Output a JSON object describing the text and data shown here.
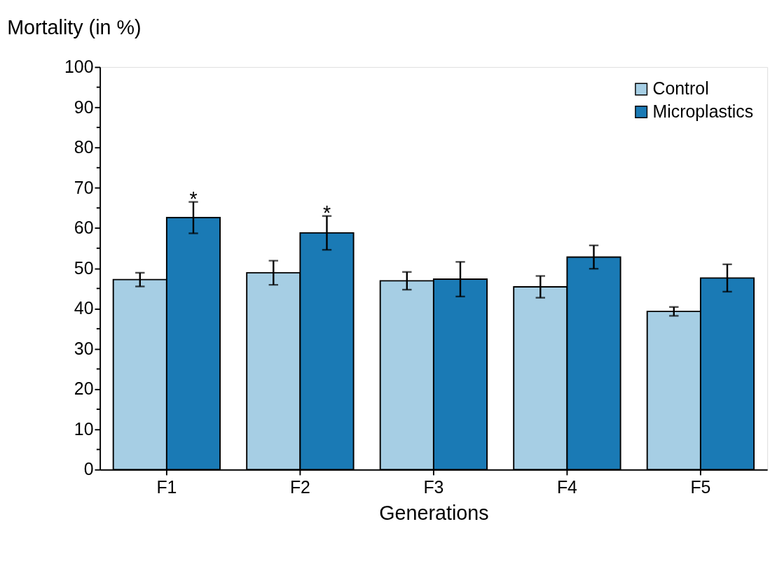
{
  "chart_data": {
    "type": "bar",
    "xlabel": "Generations",
    "ylabel": "Mortality (in %)",
    "categories": [
      "F1",
      "F2",
      "F3",
      "F4",
      "F5"
    ],
    "series": [
      {
        "name": "Control",
        "color": "#a6cee4",
        "values": [
          47.2,
          48.9,
          46.9,
          45.4,
          39.3
        ],
        "errors": [
          1.7,
          3.0,
          2.2,
          2.7,
          1.1
        ]
      },
      {
        "name": "Microplastics",
        "color": "#1a7ab5",
        "values": [
          62.6,
          58.8,
          47.3,
          52.8,
          47.6
        ],
        "errors": [
          3.9,
          4.2,
          4.3,
          2.9,
          3.4
        ]
      }
    ],
    "ylim": [
      0,
      100
    ],
    "yticks": [
      0,
      {
        "value": 5,
        "label": null
      },
      10,
      {
        "value": 15,
        "label": null
      },
      20,
      {
        "value": 25,
        "label": null
      },
      30,
      {
        "value": 35,
        "label": null
      },
      40,
      {
        "value": 45,
        "label": null
      },
      50,
      {
        "value": 55,
        "label": null
      },
      60,
      {
        "value": 65,
        "label": null
      },
      70,
      {
        "value": 75,
        "label": null
      },
      80,
      {
        "value": 85,
        "label": null
      },
      90,
      {
        "value": 95,
        "label": null
      },
      100
    ],
    "annotations": [
      {
        "text": "*",
        "x": "F1",
        "y": 62.6
      },
      {
        "text": "*",
        "x": "F2",
        "y": 58.8
      }
    ],
    "legend": "top right",
    "grid": false
  }
}
